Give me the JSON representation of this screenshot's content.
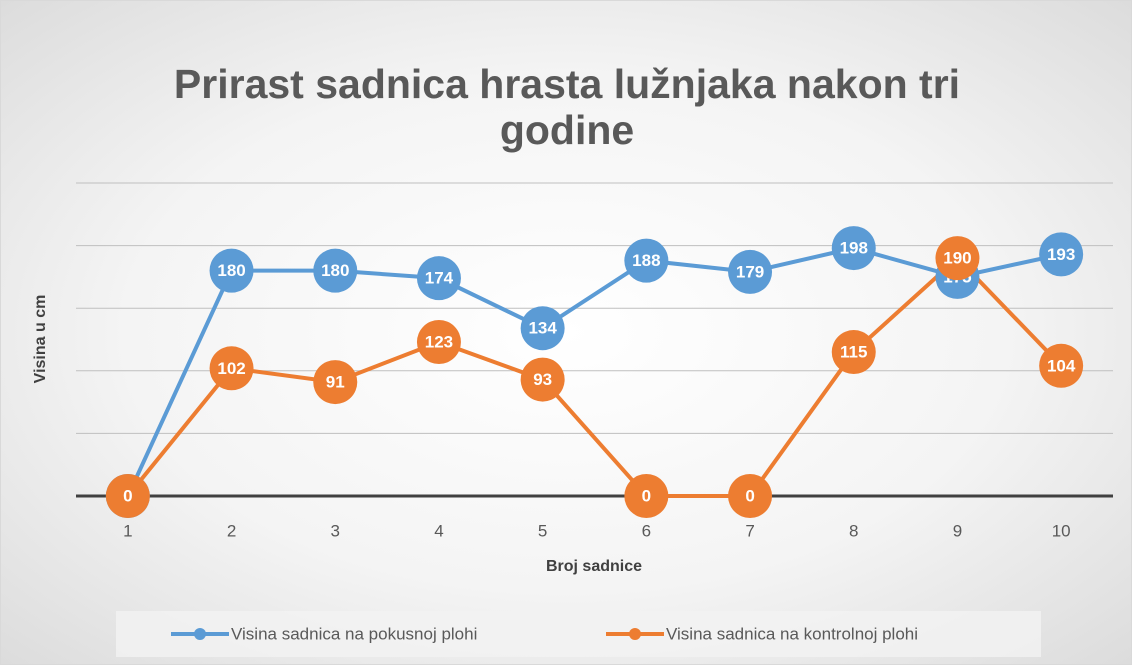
{
  "chart_data": {
    "type": "line",
    "title": "Prirast sadnica hrasta lužnjaka nakon tri godine",
    "x_label": "Broj sadnice",
    "y_label": "Visina u cm",
    "categories": [
      "1",
      "2",
      "3",
      "4",
      "5",
      "6",
      "7",
      "8",
      "9",
      "10"
    ],
    "series": [
      {
        "name": "Visina sadnica na pokusnoj plohi",
        "color": "#5b9bd5",
        "values": [
          0,
          180,
          180,
          174,
          134,
          188,
          179,
          198,
          175,
          193
        ]
      },
      {
        "name": "Visina sadnica na kontrolnoj plohi",
        "color": "#ed7d31",
        "values": [
          0,
          102,
          91,
          123,
          93,
          0,
          0,
          115,
          190,
          104
        ]
      }
    ],
    "ylim": [
      0,
      250
    ],
    "yticks": [
      0,
      50,
      100,
      150,
      200,
      250
    ],
    "grid": true,
    "legend": "bottom"
  }
}
